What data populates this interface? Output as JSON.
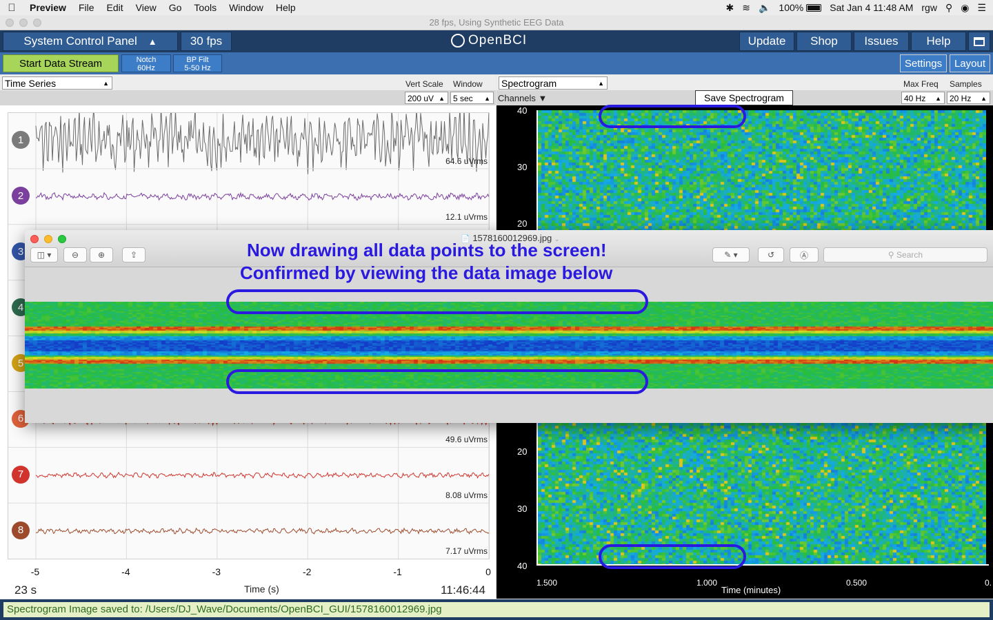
{
  "menubar": {
    "items": [
      "Preview",
      "File",
      "Edit",
      "View",
      "Go",
      "Tools",
      "Window",
      "Help"
    ],
    "battery": "100%",
    "datetime": "Sat Jan 4  11:48 AM",
    "user": "rgw"
  },
  "window": {
    "title": "28 fps, Using Synthetic EEG Data"
  },
  "nav": {
    "panel": "System Control Panel",
    "fps": "30 fps",
    "logo": "OpenBCI",
    "update": "Update",
    "shop": "Shop",
    "issues": "Issues",
    "help": "Help"
  },
  "toolbar": {
    "start": "Start Data Stream",
    "notch_line1": "Notch",
    "notch_line2": "60Hz",
    "bp_line1": "BP Filt",
    "bp_line2": "5-50 Hz",
    "settings": "Settings",
    "layout": "Layout"
  },
  "timeseries": {
    "title": "Time Series",
    "vert_scale_label": "Vert Scale",
    "window_label": "Window",
    "vert_scale_value": "200 uV",
    "window_value": "5 sec",
    "channels": [
      {
        "num": "1",
        "rms": "64.6 uVrms",
        "color": "#7a7a7a",
        "trace": "#6a6a6a",
        "amp": 36,
        "freq": 0.9
      },
      {
        "num": "2",
        "rms": "12.1 uVrms",
        "color": "#7b3f9e",
        "trace": "#7b3f9e",
        "amp": 4,
        "freq": 0.35
      },
      {
        "num": "3",
        "rms": "",
        "color": "#3256a8",
        "trace": "#3256a8",
        "amp": 4,
        "freq": 0.35
      },
      {
        "num": "4",
        "rms": "",
        "color": "#2e6b4f",
        "trace": "#2e6b4f",
        "amp": 4,
        "freq": 0.35
      },
      {
        "num": "5",
        "rms": "",
        "color": "#d4a216",
        "trace": "#d4a216",
        "amp": 4,
        "freq": 0.35
      },
      {
        "num": "6",
        "rms": "49.6 uVrms",
        "color": "#e0623a",
        "trace": "#d03b2a",
        "amp": 6,
        "freq": 1.0
      },
      {
        "num": "7",
        "rms": "8.08 uVrms",
        "color": "#d0342c",
        "trace": "#d0342c",
        "amp": 3,
        "freq": 0.5
      },
      {
        "num": "8",
        "rms": "7.17 uVrms",
        "color": "#9c4a2b",
        "trace": "#9c4a2b",
        "amp": 3,
        "freq": 0.5
      }
    ],
    "xticks": [
      "-5",
      "-4",
      "-3",
      "-2",
      "-1",
      "0"
    ],
    "xlabel": "Time (s)",
    "elapsed": "23 s",
    "clock": "11:46:44"
  },
  "spectrogram": {
    "title": "Spectrogram",
    "channels_label": "Channels ▼",
    "save_button": "Save Spectrogram",
    "max_freq_label": "Max Freq",
    "samples_label": "Samples",
    "max_freq_value": "40 Hz",
    "samples_value": "20 Hz",
    "yticks_top": [
      "40",
      "30",
      "20"
    ],
    "yticks_bottom": [
      "20",
      "30",
      "40"
    ],
    "xticks": [
      "1.500",
      "1.000",
      "0.500",
      "0."
    ],
    "xlabel": "Time (minutes)"
  },
  "preview": {
    "filename": "1578160012969.jpg",
    "search_placeholder": "Search",
    "annotation_line1": "Now drawing all data points to the screen!",
    "annotation_line2": "Confirmed by viewing the data image below"
  },
  "status": {
    "message": "Spectrogram Image saved to: /Users/DJ_Wave/Documents/OpenBCI_GUI/1578160012969.jpg"
  },
  "colors": {
    "nav_bg": "#1f3c63",
    "accent_blue": "#2f5c93",
    "start_green": "#a6d55a",
    "annotation": "#2a1adf"
  }
}
